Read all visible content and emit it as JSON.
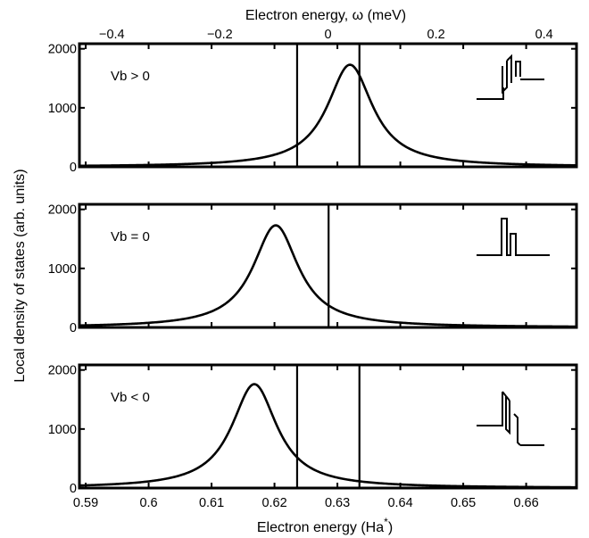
{
  "chart_data": {
    "type": "line",
    "top_xlabel": "Electron energy, ω (meV)",
    "top_xticks": [
      "−0.4",
      "−0.2",
      "0",
      "0.2",
      "0.4"
    ],
    "top_xtick_values": [
      -0.4,
      -0.2,
      0,
      0.2,
      0.4
    ],
    "top_xlim": [
      -0.46,
      0.46
    ],
    "xlabel": "Electron energy (Ha",
    "xlabel_sup": "*",
    "xlabel_close": ")",
    "ylabel": "Local density of states (arb. units)",
    "xlim": [
      0.589,
      0.668
    ],
    "ylim": [
      0,
      2000
    ],
    "xticks": [
      "0.59",
      "0.6",
      "0.61",
      "0.62",
      "0.63",
      "0.64",
      "0.65",
      "0.66"
    ],
    "xtick_values": [
      0.59,
      0.6,
      0.61,
      0.62,
      0.63,
      0.64,
      0.65,
      0.66
    ],
    "yticks": [
      "0",
      "1000",
      "2000"
    ],
    "ytick_values": [
      0,
      1000,
      2000
    ],
    "panels": [
      {
        "label": "Vb > 0",
        "peak_x": 0.632,
        "peak_y": 1730,
        "half_width": 0.0044,
        "lines": [
          0.6236,
          0.6335
        ],
        "schematic": "positive"
      },
      {
        "label": "Vb = 0",
        "peak_x": 0.6202,
        "peak_y": 1730,
        "half_width": 0.0044,
        "lines": [
          0.6286
        ],
        "schematic": "zero"
      },
      {
        "label": "Vb < 0",
        "peak_x": 0.6168,
        "peak_y": 1760,
        "half_width": 0.0044,
        "lines": [
          0.6236,
          0.6335
        ],
        "schematic": "negative"
      }
    ]
  }
}
